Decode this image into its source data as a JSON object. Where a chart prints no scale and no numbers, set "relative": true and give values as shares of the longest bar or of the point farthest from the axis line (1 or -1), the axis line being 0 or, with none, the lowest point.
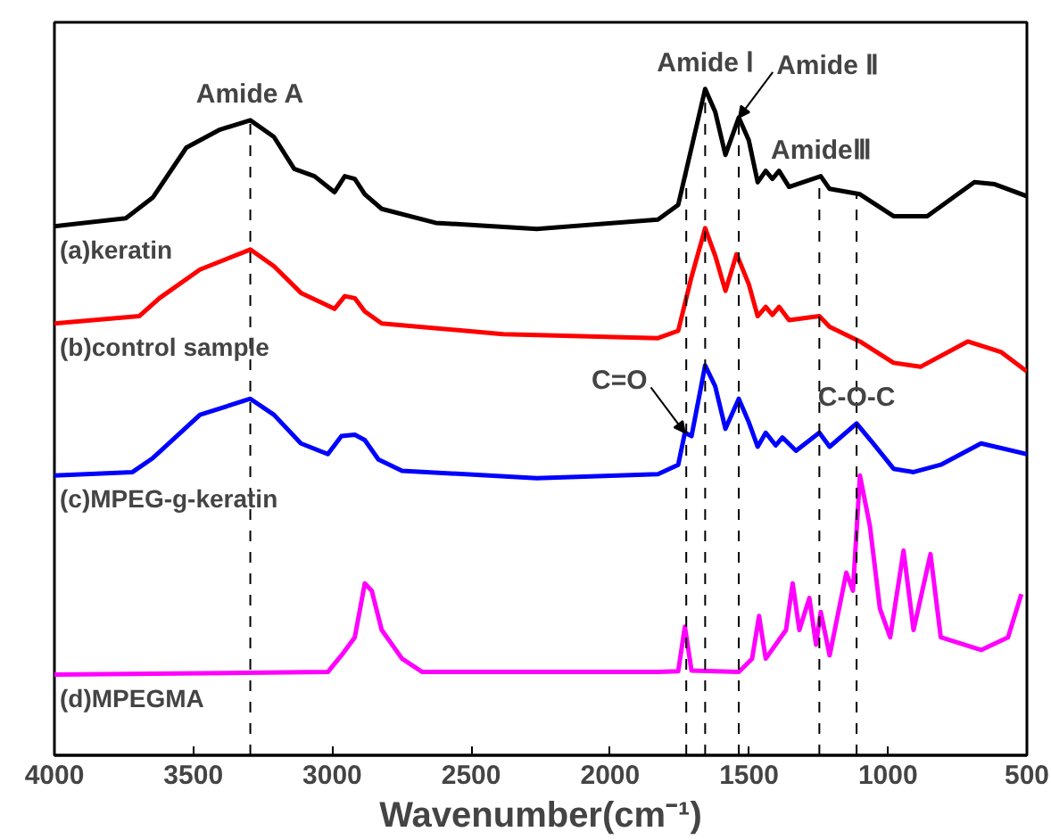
{
  "chart_data": {
    "type": "line",
    "relative": true,
    "xlabel": "Wavenumber(cm⁻¹)",
    "xlim": [
      4000,
      500
    ],
    "xticks": [
      4000,
      3500,
      3000,
      2500,
      2000,
      1500,
      1000,
      500
    ],
    "tick_labels": "x",
    "grid": false,
    "legend": false,
    "marker": "none",
    "line_style": "solid",
    "series": [
      {
        "name": "(a)keratin",
        "color": "#000000",
        "x": [
          4000,
          3743,
          3646,
          3525,
          3404,
          3295,
          3210,
          3137,
          3064,
          2992,
          2955,
          2919,
          2883,
          2822,
          2628,
          2264,
          1828,
          1755,
          1707,
          1658,
          1622,
          1585,
          1537,
          1501,
          1469,
          1440,
          1416,
          1392,
          1356,
          1242,
          1210,
          1101,
          980,
          859,
          689,
          616,
          500
        ],
        "values": [
          0.794,
          0.806,
          0.837,
          0.912,
          0.939,
          0.953,
          0.928,
          0.88,
          0.869,
          0.845,
          0.869,
          0.865,
          0.842,
          0.82,
          0.799,
          0.79,
          0.804,
          0.826,
          0.912,
          1.0,
          0.966,
          0.901,
          0.957,
          0.923,
          0.86,
          0.877,
          0.865,
          0.877,
          0.853,
          0.869,
          0.85,
          0.842,
          0.809,
          0.809,
          0.86,
          0.857,
          0.839
        ]
      },
      {
        "name": "(b)control sample",
        "color": "#ff0000",
        "x": [
          4000,
          3695,
          3622,
          3476,
          3295,
          3210,
          3113,
          2992,
          2955,
          2919,
          2883,
          2822,
          2386,
          1828,
          1755,
          1707,
          1658,
          1622,
          1585,
          1545,
          1501,
          1469,
          1440,
          1416,
          1392,
          1356,
          1247,
          1210,
          1101,
          980,
          883,
          713,
          592,
          500
        ],
        "values": [
          0.648,
          0.659,
          0.686,
          0.729,
          0.759,
          0.734,
          0.694,
          0.67,
          0.689,
          0.686,
          0.666,
          0.648,
          0.632,
          0.626,
          0.637,
          0.718,
          0.791,
          0.75,
          0.697,
          0.752,
          0.707,
          0.659,
          0.673,
          0.661,
          0.673,
          0.653,
          0.659,
          0.643,
          0.621,
          0.589,
          0.583,
          0.621,
          0.605,
          0.576
        ]
      },
      {
        "name": "(c)MPEG-g-keratin",
        "color": "#0000ff",
        "x": [
          4000,
          3719,
          3646,
          3476,
          3295,
          3210,
          3113,
          3016,
          2967,
          2919,
          2883,
          2834,
          2749,
          2264,
          1828,
          1755,
          1731,
          1707,
          1658,
          1622,
          1585,
          1537,
          1501,
          1469,
          1440,
          1404,
          1380,
          1331,
          1247,
          1210,
          1113,
          1053,
          980,
          908,
          810,
          665,
          500
        ],
        "values": [
          0.42,
          0.425,
          0.446,
          0.511,
          0.535,
          0.511,
          0.468,
          0.452,
          0.479,
          0.481,
          0.473,
          0.444,
          0.427,
          0.416,
          0.422,
          0.436,
          0.484,
          0.479,
          0.585,
          0.554,
          0.49,
          0.535,
          0.5,
          0.463,
          0.484,
          0.465,
          0.477,
          0.457,
          0.484,
          0.463,
          0.498,
          0.468,
          0.43,
          0.425,
          0.436,
          0.468,
          0.452
        ]
      },
      {
        "name": "(d)MPEGMA",
        "color": "#ff00ff",
        "x": [
          4000,
          3016,
          2967,
          2919,
          2883,
          2858,
          2822,
          2749,
          2676,
          1828,
          1755,
          1731,
          1707,
          1537,
          1489,
          1464,
          1440,
          1367,
          1343,
          1319,
          1283,
          1259,
          1242,
          1210,
          1150,
          1126,
          1101,
          1065,
          1029,
          992,
          944,
          908,
          847,
          810,
          665,
          568,
          520
        ],
        "values": [
          0.121,
          0.125,
          0.15,
          0.177,
          0.258,
          0.247,
          0.188,
          0.145,
          0.125,
          0.125,
          0.126,
          0.193,
          0.127,
          0.125,
          0.145,
          0.209,
          0.145,
          0.188,
          0.258,
          0.188,
          0.236,
          0.166,
          0.215,
          0.15,
          0.274,
          0.247,
          0.42,
          0.344,
          0.22,
          0.177,
          0.307,
          0.188,
          0.302,
          0.177,
          0.158,
          0.177,
          0.242
        ]
      }
    ],
    "ref_lines": [
      {
        "axis": "x",
        "value": 3295,
        "line_style": "dashed"
      },
      {
        "axis": "x",
        "value": 1658,
        "line_style": "dashed"
      },
      {
        "axis": "x",
        "value": 1537,
        "line_style": "dashed"
      },
      {
        "axis": "x",
        "value": 1247,
        "line_style": "dashed"
      },
      {
        "axis": "x",
        "value": 1726,
        "line_style": "dashed"
      },
      {
        "axis": "x",
        "value": 1113,
        "line_style": "dashed"
      }
    ],
    "annotations": [
      {
        "text": "Amide A",
        "x": 3295,
        "y": 0.953
      },
      {
        "text": "Amide Ⅰ",
        "x": 1658,
        "y": 1.0
      },
      {
        "text": "Amide Ⅱ",
        "x": 1537,
        "y": 0.957
      },
      {
        "text": "AmideⅢ",
        "x": 1242,
        "y": 0.869
      },
      {
        "text": "C=O",
        "x": 1731,
        "y": 0.484
      },
      {
        "text": "C-O-C",
        "x": 1113,
        "y": 0.498
      }
    ]
  }
}
